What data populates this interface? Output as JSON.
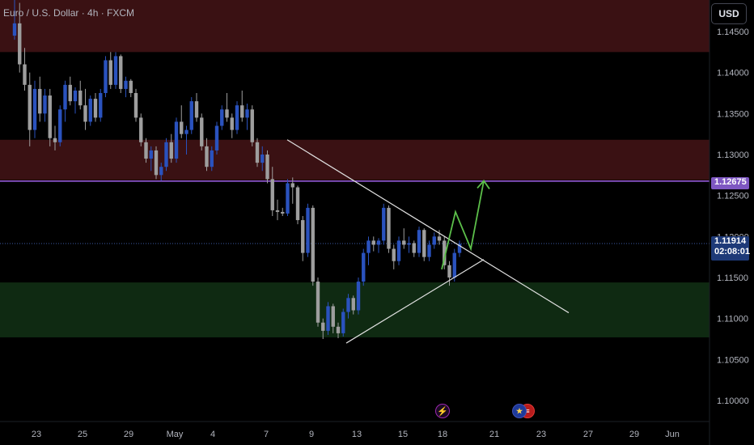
{
  "header": {
    "title": "Euro / U.S. Dollar · 4h · FXCM",
    "currency_button": "USD"
  },
  "price_tags": {
    "level_value": "1.12675",
    "current_price": "1.11914",
    "countdown": "02:08:01"
  },
  "events": [
    {
      "icon": "lightning-icon",
      "symbol": "⚡"
    },
    {
      "icon": "eu-flag-icon",
      "symbol": "★"
    },
    {
      "icon": "us-flag-icon",
      "symbol": "≡"
    }
  ],
  "colors": {
    "background": "#000000",
    "bull_candle": "#2a52be",
    "bear_candle": "#9e9e9e",
    "resistance_zone": "#3a1113",
    "support_zone": "#0f2a12",
    "level_line": "#9c5fe6",
    "trendline": "#e0e0e0",
    "projection_arrow": "#5cbf4a"
  },
  "chart_data": {
    "type": "candlestick",
    "symbol": "Euro / U.S. Dollar",
    "timeframe": "4h",
    "source": "FXCM",
    "x_ticks": [
      "23",
      "25",
      "29",
      "May",
      "4",
      "7",
      "9",
      "13",
      "15",
      "18",
      "21",
      "23",
      "27",
      "29",
      "Jun"
    ],
    "y_ticks": [
      "1.14500",
      "1.14000",
      "1.13500",
      "1.13000",
      "1.12500",
      "1.12000",
      "1.11500",
      "1.11000",
      "1.10500",
      "1.10000"
    ],
    "y_range": [
      1.0965,
      1.1475
    ],
    "current_price": 1.11914,
    "key_level": 1.12675,
    "zones": [
      {
        "kind": "resistance",
        "from": 1.1425,
        "to": 1.149
      },
      {
        "kind": "resistance",
        "from": 1.1269,
        "to": 1.1318
      },
      {
        "kind": "support",
        "from": 1.1077,
        "to": 1.1144
      }
    ],
    "anchors": [
      {
        "x": "23",
        "close": 1.145
      },
      {
        "x": "25",
        "close": 1.137
      },
      {
        "x": "29",
        "close": 1.14
      },
      {
        "x": "May",
        "close": 1.134
      },
      {
        "x": "4",
        "close": 1.131
      },
      {
        "x": "7",
        "close": 1.136
      },
      {
        "x": "9",
        "close": 1.124
      },
      {
        "x": "13",
        "close": 1.11
      },
      {
        "x": "15",
        "close": 1.122
      },
      {
        "x": "18",
        "close": 1.1191
      }
    ],
    "candles": [
      [
        1.1445,
        1.1495,
        1.144,
        1.146
      ],
      [
        1.146,
        1.1485,
        1.14,
        1.141
      ],
      [
        1.141,
        1.143,
        1.1378,
        1.1385
      ],
      [
        1.1385,
        1.14,
        1.131,
        1.133
      ],
      [
        1.133,
        1.139,
        1.132,
        1.138
      ],
      [
        1.138,
        1.1395,
        1.134,
        1.135
      ],
      [
        1.135,
        1.138,
        1.134,
        1.1372
      ],
      [
        1.1372,
        1.138,
        1.131,
        1.132
      ],
      [
        1.132,
        1.1335,
        1.1305,
        1.1315
      ],
      [
        1.1315,
        1.136,
        1.131,
        1.1355
      ],
      [
        1.1355,
        1.139,
        1.134,
        1.1385
      ],
      [
        1.1385,
        1.1395,
        1.136,
        1.1365
      ],
      [
        1.1365,
        1.1382,
        1.135,
        1.1378
      ],
      [
        1.1378,
        1.139,
        1.1355,
        1.136
      ],
      [
        1.136,
        1.138,
        1.133,
        1.134
      ],
      [
        1.134,
        1.1372,
        1.1335,
        1.1368
      ],
      [
        1.1368,
        1.1375,
        1.134,
        1.1345
      ],
      [
        1.1345,
        1.138,
        1.134,
        1.1375
      ],
      [
        1.1375,
        1.142,
        1.137,
        1.1415
      ],
      [
        1.1415,
        1.1425,
        1.138,
        1.1385
      ],
      [
        1.1385,
        1.1425,
        1.138,
        1.142
      ],
      [
        1.142,
        1.1422,
        1.1375,
        1.138
      ],
      [
        1.138,
        1.1395,
        1.137,
        1.139
      ],
      [
        1.139,
        1.1392,
        1.137,
        1.1375
      ],
      [
        1.1375,
        1.138,
        1.134,
        1.1345
      ],
      [
        1.1345,
        1.135,
        1.131,
        1.1315
      ],
      [
        1.1315,
        1.132,
        1.129,
        1.1295
      ],
      [
        1.1295,
        1.131,
        1.128,
        1.1305
      ],
      [
        1.1305,
        1.131,
        1.127,
        1.1275
      ],
      [
        1.1275,
        1.129,
        1.1268,
        1.1285
      ],
      [
        1.1285,
        1.132,
        1.128,
        1.1315
      ],
      [
        1.1315,
        1.1325,
        1.129,
        1.1295
      ],
      [
        1.1295,
        1.1345,
        1.129,
        1.134
      ],
      [
        1.134,
        1.136,
        1.132,
        1.1325
      ],
      [
        1.1325,
        1.1335,
        1.13,
        1.133
      ],
      [
        1.133,
        1.137,
        1.1325,
        1.1365
      ],
      [
        1.1365,
        1.1375,
        1.134,
        1.1345
      ],
      [
        1.1345,
        1.135,
        1.1305,
        1.131
      ],
      [
        1.131,
        1.132,
        1.128,
        1.1285
      ],
      [
        1.1285,
        1.131,
        1.128,
        1.1305
      ],
      [
        1.1305,
        1.134,
        1.13,
        1.1335
      ],
      [
        1.1335,
        1.136,
        1.133,
        1.1355
      ],
      [
        1.1355,
        1.1375,
        1.134,
        1.1345
      ],
      [
        1.1345,
        1.135,
        1.132,
        1.133
      ],
      [
        1.133,
        1.1365,
        1.1325,
        1.136
      ],
      [
        1.136,
        1.1378,
        1.134,
        1.1345
      ],
      [
        1.1345,
        1.1362,
        1.133,
        1.1355
      ],
      [
        1.1355,
        1.136,
        1.131,
        1.1315
      ],
      [
        1.1315,
        1.132,
        1.1285,
        1.129
      ],
      [
        1.129,
        1.131,
        1.128,
        1.13
      ],
      [
        1.13,
        1.1305,
        1.1265,
        1.127
      ],
      [
        1.127,
        1.1285,
        1.1225,
        1.1232
      ],
      [
        1.1232,
        1.1245,
        1.122,
        1.123
      ],
      [
        1.123,
        1.1235,
        1.1225,
        1.1228
      ],
      [
        1.1228,
        1.127,
        1.1225,
        1.1265
      ],
      [
        1.1265,
        1.1272,
        1.124,
        1.126
      ],
      [
        1.126,
        1.1262,
        1.1215,
        1.122
      ],
      [
        1.122,
        1.1225,
        1.117,
        1.118
      ],
      [
        1.118,
        1.124,
        1.1175,
        1.1235
      ],
      [
        1.1235,
        1.1238,
        1.114,
        1.1145
      ],
      [
        1.1145,
        1.115,
        1.109,
        1.1095
      ],
      [
        1.1095,
        1.11,
        1.1075,
        1.1085
      ],
      [
        1.1085,
        1.112,
        1.108,
        1.1115
      ],
      [
        1.1115,
        1.1118,
        1.1082,
        1.109
      ],
      [
        1.109,
        1.1095,
        1.1076,
        1.1082
      ],
      [
        1.1082,
        1.1112,
        1.1078,
        1.1108
      ],
      [
        1.1108,
        1.113,
        1.11,
        1.1125
      ],
      [
        1.1125,
        1.1128,
        1.1105,
        1.111
      ],
      [
        1.111,
        1.115,
        1.1105,
        1.1145
      ],
      [
        1.1145,
        1.1185,
        1.114,
        1.118
      ],
      [
        1.118,
        1.12,
        1.1165,
        1.1195
      ],
      [
        1.1195,
        1.12,
        1.1182,
        1.119
      ],
      [
        1.119,
        1.1198,
        1.118,
        1.1195
      ],
      [
        1.1195,
        1.124,
        1.119,
        1.1235
      ],
      [
        1.1235,
        1.1238,
        1.118,
        1.1185
      ],
      [
        1.1185,
        1.119,
        1.116,
        1.117
      ],
      [
        1.117,
        1.12,
        1.1165,
        1.1195
      ],
      [
        1.1195,
        1.121,
        1.1185,
        1.119
      ],
      [
        1.119,
        1.12,
        1.118,
        1.1192
      ],
      [
        1.1192,
        1.1195,
        1.1175,
        1.118
      ],
      [
        1.118,
        1.1212,
        1.1175,
        1.1208
      ],
      [
        1.1208,
        1.121,
        1.117,
        1.1175
      ],
      [
        1.1175,
        1.1195,
        1.117,
        1.119
      ],
      [
        1.119,
        1.1205,
        1.1185,
        1.12
      ],
      [
        1.12,
        1.1208,
        1.119,
        1.1195
      ],
      [
        1.1195,
        1.12,
        1.116,
        1.1165
      ],
      [
        1.1165,
        1.117,
        1.114,
        1.115
      ],
      [
        1.115,
        1.1185,
        1.1145,
        1.118
      ],
      [
        1.118,
        1.1195,
        1.1175,
        1.1191
      ]
    ],
    "drawings": [
      {
        "kind": "descending-trendline",
        "from": {
          "x": "8 May",
          "y": 1.1318
        },
        "to": {
          "x": "25 May",
          "y": 1.1107
        }
      },
      {
        "kind": "ascending-trendline",
        "from": {
          "x": "12 May",
          "y": 1.107
        },
        "to": {
          "x": "20 May",
          "y": 1.1172
        }
      },
      {
        "kind": "projection-arrow",
        "points": [
          1.116,
          1.123,
          1.1185,
          1.1268
        ]
      }
    ]
  }
}
